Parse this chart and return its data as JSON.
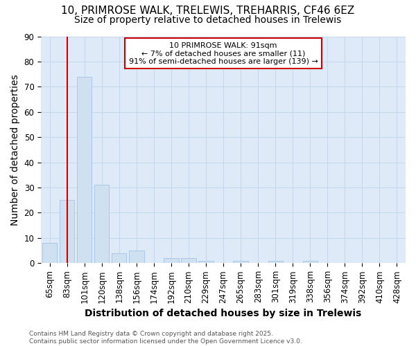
{
  "title1": "10, PRIMROSE WALK, TRELEWIS, TREHARRIS, CF46 6EZ",
  "title2": "Size of property relative to detached houses in Trelewis",
  "xlabel": "Distribution of detached houses by size in Trelewis",
  "ylabel": "Number of detached properties",
  "categories": [
    "65sqm",
    "83sqm",
    "101sqm",
    "120sqm",
    "138sqm",
    "156sqm",
    "174sqm",
    "192sqm",
    "210sqm",
    "229sqm",
    "247sqm",
    "265sqm",
    "283sqm",
    "301sqm",
    "319sqm",
    "338sqm",
    "356sqm",
    "374sqm",
    "392sqm",
    "410sqm",
    "428sqm"
  ],
  "values": [
    8,
    25,
    74,
    31,
    4,
    5,
    0,
    2,
    2,
    1,
    0,
    1,
    0,
    1,
    0,
    1,
    0,
    0,
    0,
    0,
    0
  ],
  "bar_color": "#cfe0f0",
  "bar_edge_color": "#aac8e8",
  "vline_index": 1,
  "vline_color": "#cc0000",
  "ylim": [
    0,
    90
  ],
  "yticks": [
    0,
    10,
    20,
    30,
    40,
    50,
    60,
    70,
    80,
    90
  ],
  "annotation_text": "10 PRIMROSE WALK: 91sqm\n← 7% of detached houses are smaller (11)\n91% of semi-detached houses are larger (139) →",
  "annotation_box_color": "#ffffff",
  "annotation_box_edge": "#cc0000",
  "grid_color": "#c8d8ec",
  "plot_bg_color": "#deeaf8",
  "fig_bg_color": "#ffffff",
  "footer": "Contains HM Land Registry data © Crown copyright and database right 2025.\nContains public sector information licensed under the Open Government Licence v3.0.",
  "title_fontsize": 11,
  "subtitle_fontsize": 10,
  "label_fontsize": 10,
  "tick_fontsize": 8.5
}
